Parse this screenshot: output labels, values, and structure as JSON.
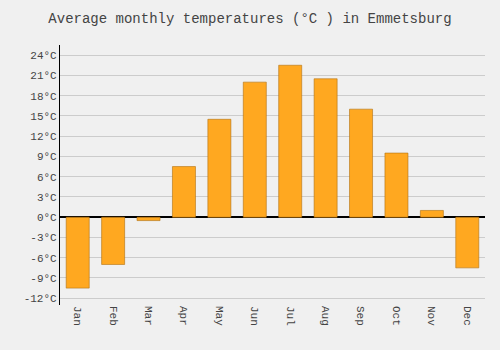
{
  "chart_data": {
    "type": "bar",
    "title": "Average monthly temperatures (°C ) in Emmetsburg",
    "categories": [
      "Jan",
      "Feb",
      "Mar",
      "Apr",
      "May",
      "Jun",
      "Jul",
      "Aug",
      "Sep",
      "Oct",
      "Nov",
      "Dec"
    ],
    "values": [
      -10.5,
      -7.0,
      -0.5,
      7.5,
      14.5,
      20.0,
      22.5,
      20.5,
      16.0,
      9.5,
      1.0,
      -7.5
    ],
    "color": "#FFA820",
    "ylim": [
      -13,
      25.5
    ],
    "yticks": [
      {
        "value": -12,
        "label": "-12°C"
      },
      {
        "value": -9,
        "label": "-9°C"
      },
      {
        "value": -6,
        "label": "-6°C"
      },
      {
        "value": -3,
        "label": "-3°C"
      },
      {
        "value": 0,
        "label": "0°C"
      },
      {
        "value": 3,
        "label": "3°C"
      },
      {
        "value": 6,
        "label": "6°C"
      },
      {
        "value": 9,
        "label": "9°C"
      },
      {
        "value": 12,
        "label": "12°C"
      },
      {
        "value": 15,
        "label": "15°C"
      },
      {
        "value": 18,
        "label": "18°C"
      },
      {
        "value": 21,
        "label": "21°C"
      },
      {
        "value": 24,
        "label": "24°C"
      }
    ],
    "grid": true
  }
}
